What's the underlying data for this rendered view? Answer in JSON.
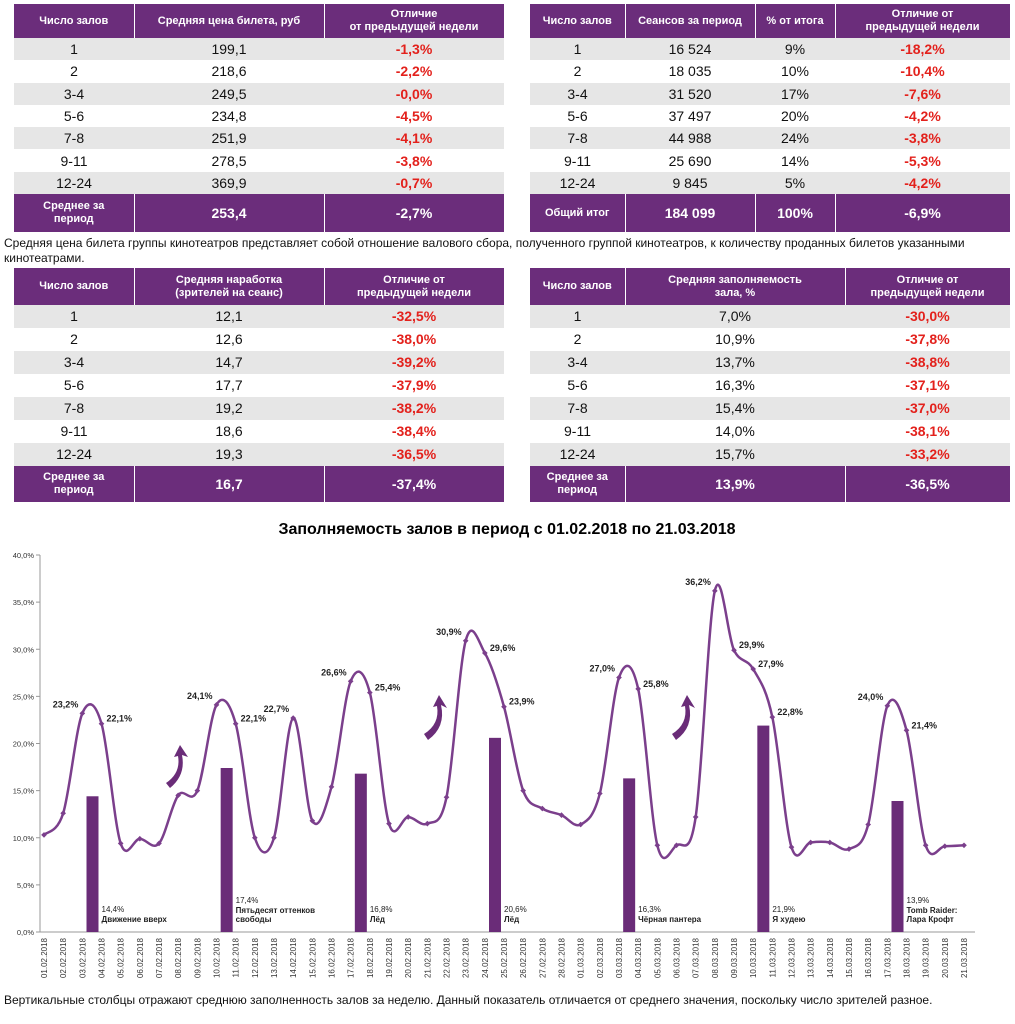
{
  "style": {
    "header_color": "#6b2d7b",
    "negative_color": "#e3211c"
  },
  "tables": [
    {
      "header": [
        [
          "Число залов"
        ],
        [
          "Средняя цена билета, руб"
        ],
        [
          "Отличие",
          "от предыдущей недели"
        ]
      ],
      "rows": [
        [
          "1",
          "199,1",
          "-1,3%"
        ],
        [
          "2",
          "218,6",
          "-2,2%"
        ],
        [
          "3-4",
          "249,5",
          "-0,0%"
        ],
        [
          "5-6",
          "234,8",
          "-4,5%"
        ],
        [
          "7-8",
          "251,9",
          "-4,1%"
        ],
        [
          "9-11",
          "278,5",
          "-3,8%"
        ],
        [
          "12-24",
          "369,9",
          "-0,7%"
        ]
      ],
      "total": [
        [
          "Среднее за",
          "период"
        ],
        "253,4",
        "-2,7%"
      ]
    },
    {
      "header": [
        [
          "Число залов"
        ],
        [
          "Сеансов за период"
        ],
        [
          "% от итога"
        ],
        [
          "Отличие от",
          "предыдущей недели"
        ]
      ],
      "rows": [
        [
          "1",
          "16 524",
          "9%",
          "-18,2%"
        ],
        [
          "2",
          "18 035",
          "10%",
          "-10,4%"
        ],
        [
          "3-4",
          "31 520",
          "17%",
          "-7,6%"
        ],
        [
          "5-6",
          "37 497",
          "20%",
          "-4,2%"
        ],
        [
          "7-8",
          "44 988",
          "24%",
          "-3,8%"
        ],
        [
          "9-11",
          "25 690",
          "14%",
          "-5,3%"
        ],
        [
          "12-24",
          "9 845",
          "5%",
          "-4,2%"
        ]
      ],
      "total": [
        "Общий итог",
        "184 099",
        "100%",
        "-6,9%"
      ]
    },
    {
      "header": [
        [
          "Число залов"
        ],
        [
          "Средняя наработка",
          "(зрителей на сеанс)"
        ],
        [
          "Отличие от",
          "предыдущей недели"
        ]
      ],
      "rows": [
        [
          "1",
          "12,1",
          "-32,5%"
        ],
        [
          "2",
          "12,6",
          "-38,0%"
        ],
        [
          "3-4",
          "14,7",
          "-39,2%"
        ],
        [
          "5-6",
          "17,7",
          "-37,9%"
        ],
        [
          "7-8",
          "19,2",
          "-38,2%"
        ],
        [
          "9-11",
          "18,6",
          "-38,4%"
        ],
        [
          "12-24",
          "19,3",
          "-36,5%"
        ]
      ],
      "total": [
        [
          "Среднее за",
          "период"
        ],
        "16,7",
        "-37,4%"
      ]
    },
    {
      "header": [
        [
          "Число залов"
        ],
        [
          "Средняя заполняемость",
          "зала, %"
        ],
        [
          "Отличие от",
          "предыдущей недели"
        ]
      ],
      "rows": [
        [
          "1",
          "7,0%",
          "-30,0%"
        ],
        [
          "2",
          "10,9%",
          "-37,8%"
        ],
        [
          "3-4",
          "13,7%",
          "-38,8%"
        ],
        [
          "5-6",
          "16,3%",
          "-37,1%"
        ],
        [
          "7-8",
          "15,4%",
          "-37,0%"
        ],
        [
          "9-11",
          "14,0%",
          "-38,1%"
        ],
        [
          "12-24",
          "15,7%",
          "-33,2%"
        ]
      ],
      "total": [
        [
          "Среднее за",
          "период"
        ],
        "13,9%",
        "-36,5%"
      ]
    }
  ],
  "note": "Средняя цена билета группы кинотеатров представляет собой отношение валового сбора, полученного группой кинотеатров, к количеству проданных билетов указанными кинотеатрами.",
  "chart_data": {
    "type": "line",
    "title": "Заполняемость залов в период с 01.02.2018 по 21.03.2018",
    "categories": [
      "01.02.2018",
      "02.02.2018",
      "03.02.2018",
      "04.02.2018",
      "05.02.2018",
      "06.02.2018",
      "07.02.2018",
      "08.02.2018",
      "09.02.2018",
      "10.02.2018",
      "11.02.2018",
      "12.02.2018",
      "13.02.2018",
      "14.02.2018",
      "15.02.2018",
      "16.02.2018",
      "17.02.2018",
      "18.02.2018",
      "19.02.2018",
      "20.02.2018",
      "21.02.2018",
      "22.02.2018",
      "23.02.2018",
      "24.02.2018",
      "25.02.2018",
      "26.02.2018",
      "27.02.2018",
      "28.02.2018",
      "01.03.2018",
      "02.03.2018",
      "03.03.2018",
      "04.03.2018",
      "05.03.2018",
      "06.03.2018",
      "07.03.2018",
      "08.03.2018",
      "09.03.2018",
      "10.03.2018",
      "11.03.2018",
      "12.03.2018",
      "13.03.2018",
      "14.03.2018",
      "15.03.2018",
      "16.03.2018",
      "17.03.2018",
      "18.03.2018",
      "19.03.2018",
      "20.03.2018",
      "21.03.2018"
    ],
    "color": "#7b3f8c",
    "values": [
      10.3,
      12.6,
      23.2,
      22.1,
      9.4,
      9.9,
      9.4,
      14.5,
      15.0,
      24.1,
      22.1,
      10.0,
      10.0,
      22.7,
      11.8,
      15.4,
      26.6,
      25.4,
      11.5,
      12.2,
      11.5,
      14.3,
      30.9,
      29.6,
      23.9,
      15.0,
      13.1,
      12.4,
      11.4,
      14.7,
      27.0,
      25.8,
      9.2,
      9.2,
      12.2,
      36.2,
      29.9,
      27.9,
      22.8,
      9.0,
      9.5,
      9.5,
      8.8,
      11.4,
      24.0,
      21.4,
      9.2,
      9.1,
      9.2
    ],
    "value_labels": [
      null,
      null,
      "23,2%",
      "22,1%",
      null,
      null,
      null,
      null,
      null,
      "24,1%",
      "22,1%",
      null,
      null,
      "22,7%",
      null,
      null,
      "26,6%",
      "25,4%",
      null,
      null,
      null,
      null,
      "30,9%",
      "29,6%",
      "23,9%",
      null,
      null,
      null,
      null,
      null,
      "27,0%",
      "25,8%",
      null,
      null,
      null,
      "36,2%",
      "29,9%",
      "27,9%",
      "22,8%",
      null,
      null,
      null,
      null,
      null,
      "24,0%",
      "21,4%",
      null,
      null,
      null
    ],
    "bars": {
      "color": "#6a2c78",
      "x": [
        "04.02.2018",
        "11.02.2018",
        "18.02.2018",
        "25.02.2018",
        "04.03.2018",
        "11.03.2018",
        "18.03.2018"
      ],
      "values": [
        14.4,
        17.4,
        16.8,
        20.6,
        16.3,
        21.9,
        13.9
      ],
      "value_labels": [
        "14,4%",
        "17,4%",
        "16,8%",
        "20,6%",
        "16,3%",
        "21,9%",
        "13,9%"
      ],
      "labels": [
        [
          "Движение вверх"
        ],
        [
          "Пятьдесят оттенков",
          "свободы"
        ],
        [
          "Лёд"
        ],
        [
          "Лёд"
        ],
        [
          "Чёрная пантера"
        ],
        [
          "Я худею"
        ],
        [
          "Tomb Raider:",
          "Лара Крофт"
        ]
      ]
    },
    "ylim": [
      0,
      40
    ],
    "yticks": [
      {
        "value": 0,
        "label": "0,0%"
      },
      {
        "value": 5,
        "label": "5,0%"
      },
      {
        "value": 10,
        "label": "10,0%"
      },
      {
        "value": 15,
        "label": "15,0%"
      },
      {
        "value": 20,
        "label": "20,0%"
      },
      {
        "value": 25,
        "label": "25,0%"
      },
      {
        "value": 30,
        "label": "30,0%"
      },
      {
        "value": 35,
        "label": "35,0%"
      },
      {
        "value": 40,
        "label": "40,0%"
      }
    ],
    "grid": false
  },
  "footnote": "Вертикальные столбцы отражают среднюю заполненность залов за неделю. Данный показатель отличается от среднего значения, поскольку число зрителей разное."
}
